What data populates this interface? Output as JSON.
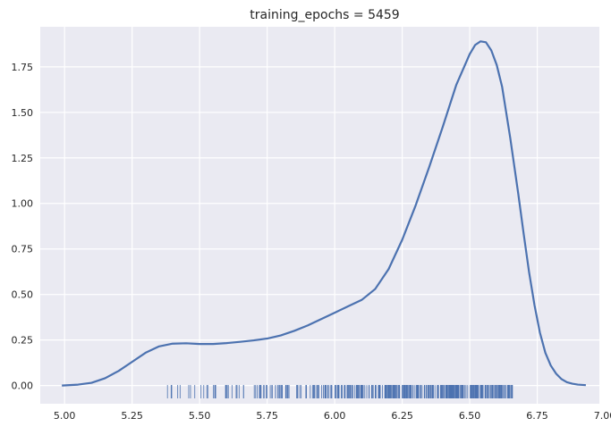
{
  "chart_data": {
    "type": "line",
    "title": "training_epochs = 5459",
    "xlabel": "",
    "ylabel": "",
    "xlim": [
      4.91,
      6.98
    ],
    "ylim": [
      -0.1,
      1.97
    ],
    "xticks": [
      5.0,
      5.25,
      5.5,
      5.75,
      6.0,
      6.25,
      6.5,
      6.75,
      7.0
    ],
    "xtick_labels": [
      "5.00",
      "5.25",
      "5.50",
      "5.75",
      "6.00",
      "6.25",
      "6.50",
      "6.75",
      "7.00"
    ],
    "yticks": [
      0.0,
      0.25,
      0.5,
      0.75,
      1.0,
      1.25,
      1.5,
      1.75
    ],
    "ytick_labels": [
      "0.00",
      "0.25",
      "0.50",
      "0.75",
      "1.00",
      "1.25",
      "1.50",
      "1.75"
    ],
    "grid": true,
    "background": "#EAEAF2",
    "series": [
      {
        "kind": "kde-line",
        "color": "#4C72B0",
        "x": [
          4.99,
          5.05,
          5.1,
          5.15,
          5.2,
          5.25,
          5.3,
          5.35,
          5.4,
          5.45,
          5.5,
          5.55,
          5.6,
          5.65,
          5.7,
          5.75,
          5.8,
          5.85,
          5.9,
          5.95,
          6.0,
          6.05,
          6.1,
          6.15,
          6.2,
          6.25,
          6.3,
          6.35,
          6.4,
          6.45,
          6.5,
          6.52,
          6.54,
          6.56,
          6.58,
          6.6,
          6.62,
          6.65,
          6.68,
          6.7,
          6.72,
          6.74,
          6.76,
          6.78,
          6.8,
          6.82,
          6.84,
          6.86,
          6.88,
          6.9,
          6.93
        ],
        "y": [
          0.0,
          0.005,
          0.015,
          0.04,
          0.08,
          0.13,
          0.18,
          0.215,
          0.23,
          0.232,
          0.228,
          0.228,
          0.233,
          0.24,
          0.248,
          0.258,
          0.275,
          0.3,
          0.33,
          0.365,
          0.4,
          0.435,
          0.47,
          0.53,
          0.64,
          0.8,
          0.99,
          1.2,
          1.42,
          1.65,
          1.82,
          1.87,
          1.89,
          1.885,
          1.84,
          1.76,
          1.64,
          1.36,
          1.05,
          0.83,
          0.62,
          0.44,
          0.29,
          0.18,
          0.11,
          0.065,
          0.035,
          0.018,
          0.01,
          0.005,
          0.002
        ]
      },
      {
        "kind": "rug",
        "color": "#4C72B0",
        "range": [
          5.26,
          6.66
        ]
      }
    ]
  }
}
